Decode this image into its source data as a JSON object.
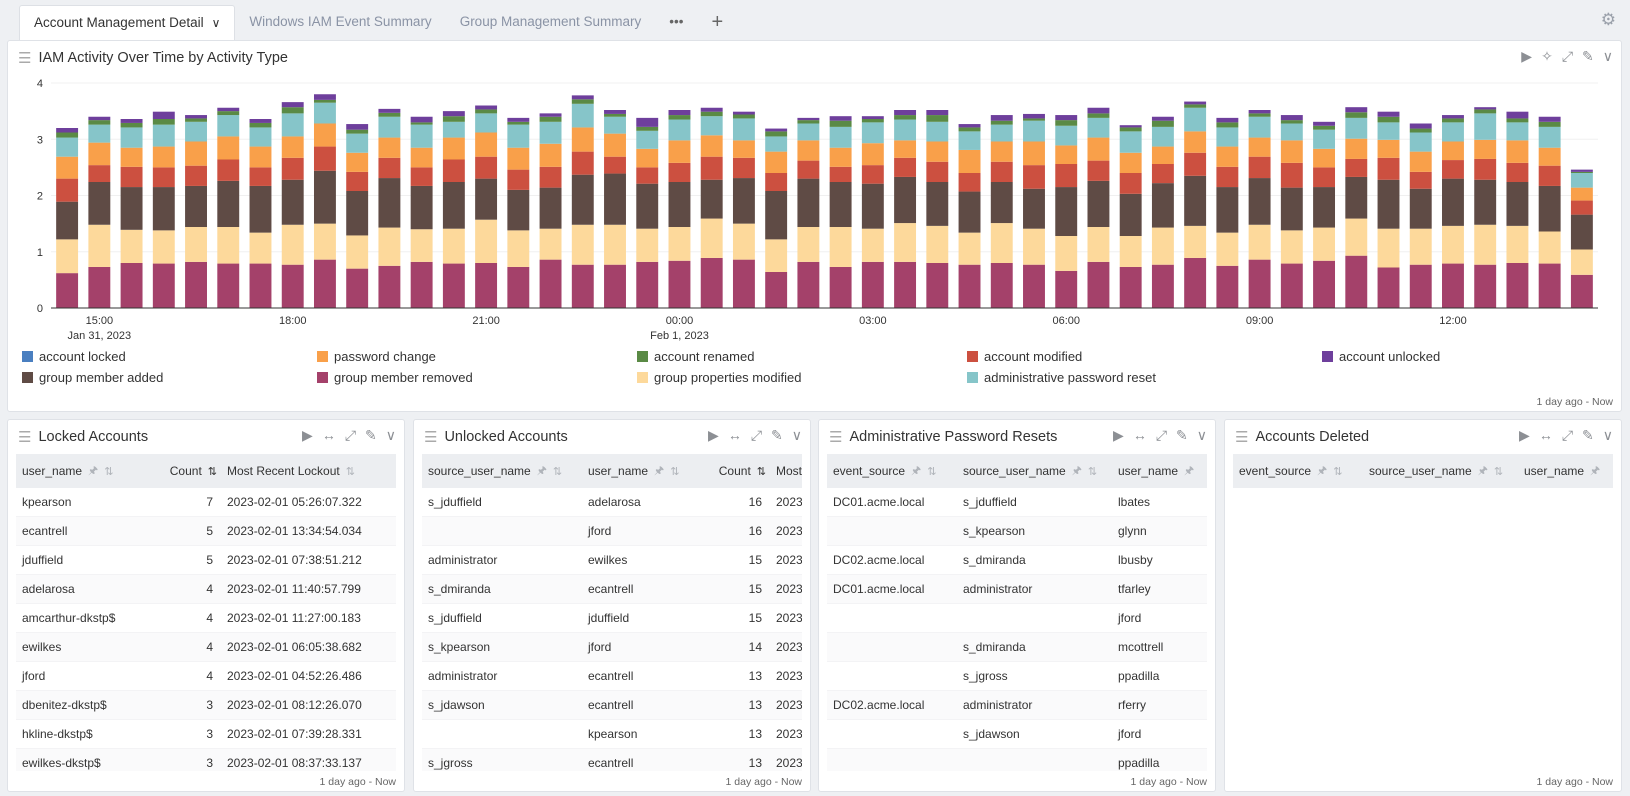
{
  "tabs": [
    {
      "label": "Account Management Detail",
      "active": true
    },
    {
      "label": "Windows IAM Event Summary"
    },
    {
      "label": "Group Management Summary"
    }
  ],
  "tab_more": "•••",
  "tab_add": "+",
  "colors": {
    "account locked": "#4a7fc0",
    "password change": "#f9a04a",
    "account renamed": "#5a8a45",
    "account modified": "#cc5040",
    "account unlocked": "#6e3f9c",
    "group member added": "#5f4b45",
    "group member removed": "#a4416a",
    "group properties modified": "#fdd99b",
    "administrative password reset": "#86c5c9"
  },
  "chart_panel": {
    "title": "IAM Activity Over Time by Activity Type",
    "footer": "1 day ago - Now"
  },
  "chart_data": {
    "type": "bar",
    "stacked": true,
    "title": "IAM Activity Over Time by Activity Type",
    "x_start": "2023-01-31 14:30",
    "x_interval": "30 min",
    "x_ticks": [
      {
        "label": "15:00",
        "sub": "Jan 31, 2023",
        "index": 1
      },
      {
        "label": "18:00",
        "index": 7
      },
      {
        "label": "21:00",
        "index": 13
      },
      {
        "label": "00:00",
        "sub": "Feb 1, 2023",
        "index": 19
      },
      {
        "label": "03:00",
        "index": 25
      },
      {
        "label": "06:00",
        "index": 31
      },
      {
        "label": "09:00",
        "index": 37
      },
      {
        "label": "12:00",
        "index": 43
      }
    ],
    "ylim": [
      0,
      4
    ],
    "y_ticks": [
      0,
      1,
      2,
      3,
      4
    ],
    "legend": "bottom",
    "legend_order": [
      "account locked",
      "password change",
      "account renamed",
      "account modified",
      "account unlocked",
      "group member added",
      "group member removed",
      "group properties modified",
      "administrative password reset"
    ],
    "series": [
      {
        "name": "group member removed",
        "values": [
          0.62,
          0.73,
          0.8,
          0.79,
          0.82,
          0.79,
          0.79,
          0.77,
          0.86,
          0.7,
          0.75,
          0.82,
          0.79,
          0.8,
          0.73,
          0.86,
          0.77,
          0.77,
          0.82,
          0.84,
          0.89,
          0.86,
          0.64,
          0.82,
          0.73,
          0.82,
          0.82,
          0.8,
          0.77,
          0.8,
          0.77,
          0.66,
          0.82,
          0.73,
          0.77,
          0.89,
          0.75,
          0.86,
          0.79,
          0.84,
          0.93,
          0.72,
          0.77,
          0.79,
          0.77,
          0.8,
          0.79,
          0.59
        ]
      },
      {
        "name": "group properties modified",
        "values": [
          0.6,
          0.75,
          0.59,
          0.59,
          0.62,
          0.65,
          0.55,
          0.71,
          0.64,
          0.59,
          0.68,
          0.58,
          0.62,
          0.77,
          0.65,
          0.55,
          0.71,
          0.71,
          0.59,
          0.6,
          0.7,
          0.64,
          0.58,
          0.62,
          0.71,
          0.59,
          0.69,
          0.66,
          0.57,
          0.71,
          0.64,
          0.62,
          0.62,
          0.55,
          0.66,
          0.57,
          0.59,
          0.62,
          0.59,
          0.59,
          0.66,
          0.69,
          0.64,
          0.67,
          0.71,
          0.66,
          0.57,
          0.45
        ]
      },
      {
        "name": "group member added",
        "values": [
          0.67,
          0.76,
          0.76,
          0.77,
          0.73,
          0.82,
          0.83,
          0.8,
          0.94,
          0.79,
          0.88,
          0.77,
          0.83,
          0.73,
          0.72,
          0.73,
          0.89,
          0.91,
          0.8,
          0.8,
          0.69,
          0.81,
          0.86,
          0.86,
          0.8,
          0.8,
          0.82,
          0.78,
          0.73,
          0.73,
          0.71,
          0.87,
          0.82,
          0.75,
          0.79,
          0.89,
          0.81,
          0.83,
          0.76,
          0.72,
          0.74,
          0.87,
          0.71,
          0.84,
          0.8,
          0.78,
          0.81,
          0.62
        ]
      },
      {
        "name": "account modified",
        "values": [
          0.41,
          0.3,
          0.36,
          0.35,
          0.36,
          0.38,
          0.33,
          0.39,
          0.43,
          0.34,
          0.36,
          0.33,
          0.4,
          0.39,
          0.36,
          0.37,
          0.41,
          0.3,
          0.29,
          0.34,
          0.41,
          0.36,
          0.32,
          0.32,
          0.27,
          0.33,
          0.34,
          0.36,
          0.33,
          0.36,
          0.42,
          0.41,
          0.36,
          0.37,
          0.34,
          0.41,
          0.36,
          0.38,
          0.44,
          0.35,
          0.32,
          0.39,
          0.3,
          0.33,
          0.37,
          0.34,
          0.36,
          0.25
        ]
      },
      {
        "name": "password change",
        "values": [
          0.39,
          0.4,
          0.34,
          0.37,
          0.43,
          0.41,
          0.37,
          0.38,
          0.41,
          0.34,
          0.36,
          0.35,
          0.39,
          0.43,
          0.39,
          0.41,
          0.43,
          0.41,
          0.33,
          0.4,
          0.38,
          0.31,
          0.38,
          0.36,
          0.34,
          0.39,
          0.31,
          0.36,
          0.41,
          0.36,
          0.42,
          0.33,
          0.41,
          0.36,
          0.31,
          0.38,
          0.36,
          0.34,
          0.4,
          0.33,
          0.36,
          0.32,
          0.36,
          0.33,
          0.34,
          0.4,
          0.32,
          0.23
        ]
      },
      {
        "name": "administrative password reset",
        "values": [
          0.34,
          0.32,
          0.36,
          0.39,
          0.35,
          0.38,
          0.34,
          0.41,
          0.37,
          0.34,
          0.37,
          0.41,
          0.28,
          0.34,
          0.41,
          0.39,
          0.42,
          0.3,
          0.32,
          0.37,
          0.34,
          0.39,
          0.27,
          0.3,
          0.37,
          0.37,
          0.37,
          0.35,
          0.33,
          0.3,
          0.37,
          0.35,
          0.35,
          0.38,
          0.35,
          0.42,
          0.34,
          0.37,
          0.3,
          0.34,
          0.37,
          0.31,
          0.34,
          0.34,
          0.47,
          0.32,
          0.37,
          0.26
        ]
      },
      {
        "name": "account renamed",
        "values": [
          0.09,
          0.08,
          0.08,
          0.1,
          0.06,
          0.07,
          0.08,
          0.11,
          0.05,
          0.07,
          0.07,
          0.04,
          0.1,
          0.07,
          0.05,
          0.09,
          0.08,
          0.05,
          0.07,
          0.08,
          0.08,
          0.07,
          0.09,
          0.06,
          0.11,
          0.06,
          0.08,
          0.12,
          0.07,
          0.07,
          0.04,
          0.1,
          0.08,
          0.07,
          0.11,
          0.06,
          0.09,
          0.06,
          0.06,
          0.07,
          0.1,
          0.1,
          0.07,
          0.07,
          0.07,
          0.07,
          0.09,
          0.02
        ]
      },
      {
        "name": "account unlocked",
        "values": [
          0.08,
          0.06,
          0.07,
          0.13,
          0.06,
          0.06,
          0.07,
          0.09,
          0.1,
          0.1,
          0.07,
          0.1,
          0.09,
          0.07,
          0.07,
          0.06,
          0.07,
          0.07,
          0.16,
          0.09,
          0.07,
          0.05,
          0.05,
          0.04,
          0.08,
          0.05,
          0.09,
          0.09,
          0.06,
          0.1,
          0.08,
          0.09,
          0.1,
          0.04,
          0.07,
          0.05,
          0.08,
          0.06,
          0.09,
          0.07,
          0.09,
          0.09,
          0.09,
          0.06,
          0.04,
          0.12,
          0.09,
          0.04
        ]
      },
      {
        "name": "account locked",
        "values": [
          0,
          0,
          0,
          0,
          0,
          0,
          0,
          0,
          0,
          0,
          0,
          0,
          0,
          0,
          0,
          0,
          0,
          0,
          0,
          0,
          0,
          0,
          0,
          0,
          0,
          0,
          0,
          0,
          0,
          0,
          0,
          0,
          0,
          0,
          0,
          0,
          0,
          0,
          0,
          0,
          0,
          0,
          0,
          0,
          0,
          0,
          0,
          0
        ]
      }
    ]
  },
  "tables": [
    {
      "title": "Locked Accounts",
      "footer": "1 day ago - Now",
      "columns": [
        {
          "label": "user_name",
          "w": 135,
          "icons": "pin sort"
        },
        {
          "label": "Count",
          "w": 70,
          "num": true,
          "icons": "sorted"
        },
        {
          "label": "Most Recent Lockout",
          "w": 170,
          "icons": "sort"
        }
      ],
      "rows": [
        [
          "kpearson",
          "7",
          "2023-02-01 05:26:07.322"
        ],
        [
          "ecantrell",
          "5",
          "2023-02-01 13:34:54.034"
        ],
        [
          "jduffield",
          "5",
          "2023-02-01 07:38:51.212"
        ],
        [
          "adelarosa",
          "4",
          "2023-02-01 11:40:57.799"
        ],
        [
          "amcarthur-dkstp$",
          "4",
          "2023-02-01 11:27:00.183"
        ],
        [
          "ewilkes",
          "4",
          "2023-02-01 06:05:38.682"
        ],
        [
          "jford",
          "4",
          "2023-02-01 04:52:26.486"
        ],
        [
          "dbenitez-dkstp$",
          "3",
          "2023-02-01 08:12:26.070"
        ],
        [
          "hkline-dkstp$",
          "3",
          "2023-02-01 07:39:28.331"
        ],
        [
          "ewilkes-dkstp$",
          "3",
          "2023-02-01 08:37:33.137"
        ]
      ]
    },
    {
      "title": "Unlocked Accounts",
      "footer": "1 day ago - Now",
      "columns": [
        {
          "label": "source_user_name",
          "w": 160,
          "icons": "pin sort"
        },
        {
          "label": "user_name",
          "w": 118,
          "icons": "pin sort"
        },
        {
          "label": "Count",
          "w": 70,
          "num": true,
          "icons": "sorted"
        },
        {
          "label": "Most",
          "w": 40
        }
      ],
      "rows": [
        [
          "s_jduffield",
          "adelarosa",
          "16",
          "2023-"
        ],
        [
          "",
          "jford",
          "16",
          "2023-"
        ],
        [
          "administrator",
          "ewilkes",
          "15",
          "2023-"
        ],
        [
          "s_dmiranda",
          "ecantrell",
          "15",
          "2023-"
        ],
        [
          "s_jduffield",
          "jduffield",
          "15",
          "2023-"
        ],
        [
          "s_kpearson",
          "jford",
          "14",
          "2023-"
        ],
        [
          "administrator",
          "ecantrell",
          "13",
          "2023-"
        ],
        [
          "s_jdawson",
          "ecantrell",
          "13",
          "2023-"
        ],
        [
          "",
          "kpearson",
          "13",
          "2023-"
        ],
        [
          "s_jgross",
          "ecantrell",
          "13",
          "2023-"
        ]
      ]
    },
    {
      "title": "Administrative Password Resets",
      "footer": "1 day ago - Now",
      "columns": [
        {
          "label": "event_source",
          "w": 130,
          "icons": "pin sort"
        },
        {
          "label": "source_user_name",
          "w": 155,
          "icons": "pin sort"
        },
        {
          "label": "user_name",
          "w": 95,
          "icons": "pin"
        }
      ],
      "rows": [
        [
          "DC01.acme.local",
          "s_jduffield",
          "lbates"
        ],
        [
          "",
          "s_kpearson",
          "glynn"
        ],
        [
          "DC02.acme.local",
          "s_dmiranda",
          "lbusby"
        ],
        [
          "DC01.acme.local",
          "administrator",
          "tfarley"
        ],
        [
          "",
          "",
          "jford"
        ],
        [
          "",
          "s_dmiranda",
          "mcottrell"
        ],
        [
          "",
          "s_jgross",
          "ppadilla"
        ],
        [
          "DC02.acme.local",
          "administrator",
          "rferry"
        ],
        [
          "",
          "s_jdawson",
          "jford"
        ],
        [
          "",
          "",
          "ppadilla"
        ]
      ]
    },
    {
      "title": "Accounts Deleted",
      "footer": "1 day ago - Now",
      "columns": [
        {
          "label": "event_source",
          "w": 130,
          "icons": "pin sort"
        },
        {
          "label": "source_user_name",
          "w": 155,
          "icons": "pin sort"
        },
        {
          "label": "user_name",
          "w": 95,
          "icons": "pin"
        }
      ],
      "rows": []
    }
  ]
}
